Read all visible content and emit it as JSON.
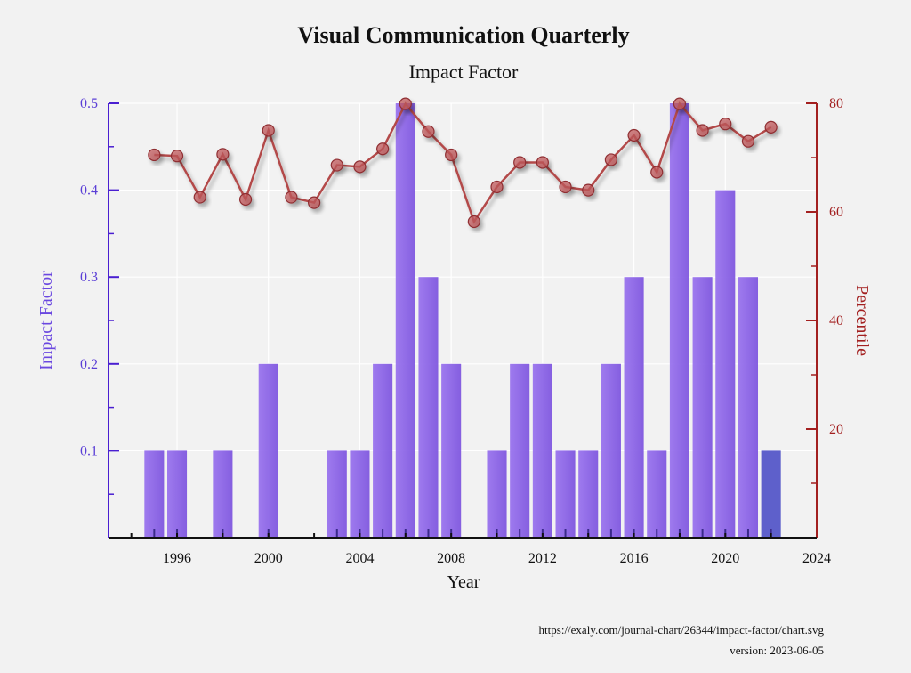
{
  "chart_data": {
    "type": "bar",
    "title": "Visual Communication Quarterly",
    "subtitle": "Impact Factor",
    "xlabel": "Year",
    "ylabel": "Impact Factor",
    "y2label": "Percentile",
    "xlim": [
      1993,
      2024
    ],
    "ylim": [
      0,
      0.5
    ],
    "y2lim": [
      0,
      80
    ],
    "xticks": [
      1996,
      2000,
      2004,
      2008,
      2012,
      2016,
      2020,
      2024
    ],
    "yticks": [
      0.1,
      0.2,
      0.3,
      0.4,
      0.5
    ],
    "y2ticks": [
      20,
      40,
      60,
      80
    ],
    "grid": true,
    "bar_series": {
      "name": "Impact Factor",
      "color": "#8a62e6",
      "highlight_color": "#5557c8",
      "highlight_year": 2022,
      "x": [
        1995,
        1996,
        1998,
        2000,
        2003,
        2004,
        2005,
        2006,
        2007,
        2008,
        2010,
        2011,
        2012,
        2013,
        2014,
        2015,
        2016,
        2017,
        2018,
        2019,
        2020,
        2021,
        2022
      ],
      "values": [
        0.1,
        0.1,
        0.1,
        0.2,
        0.1,
        0.1,
        0.2,
        0.5,
        0.3,
        0.2,
        0.1,
        0.2,
        0.2,
        0.1,
        0.1,
        0.2,
        0.3,
        0.1,
        0.5,
        0.3,
        0.4,
        0.3,
        0.1
      ]
    },
    "line_series": {
      "name": "Percentile",
      "color": "#b34a4a",
      "x": [
        1995,
        1996,
        1997,
        1998,
        1999,
        2000,
        2001,
        2002,
        2003,
        2004,
        2005,
        2006,
        2007,
        2008,
        2009,
        2010,
        2011,
        2012,
        2013,
        2014,
        2015,
        2016,
        2017,
        2018,
        2019,
        2020,
        2021,
        2022
      ],
      "values": [
        70.5,
        70.3,
        62.7,
        70.6,
        62.3,
        75.0,
        62.7,
        61.7,
        68.6,
        68.3,
        71.6,
        79.9,
        74.8,
        70.5,
        58.2,
        64.6,
        69.1,
        69.1,
        64.6,
        64.0,
        69.6,
        74.1,
        67.3,
        79.9,
        75.0,
        76.2,
        73.0,
        75.6
      ]
    }
  },
  "footer": {
    "url": "https://exaly.com/journal-chart/26344/impact-factor/chart.svg",
    "version": "version: 2023-06-05"
  }
}
